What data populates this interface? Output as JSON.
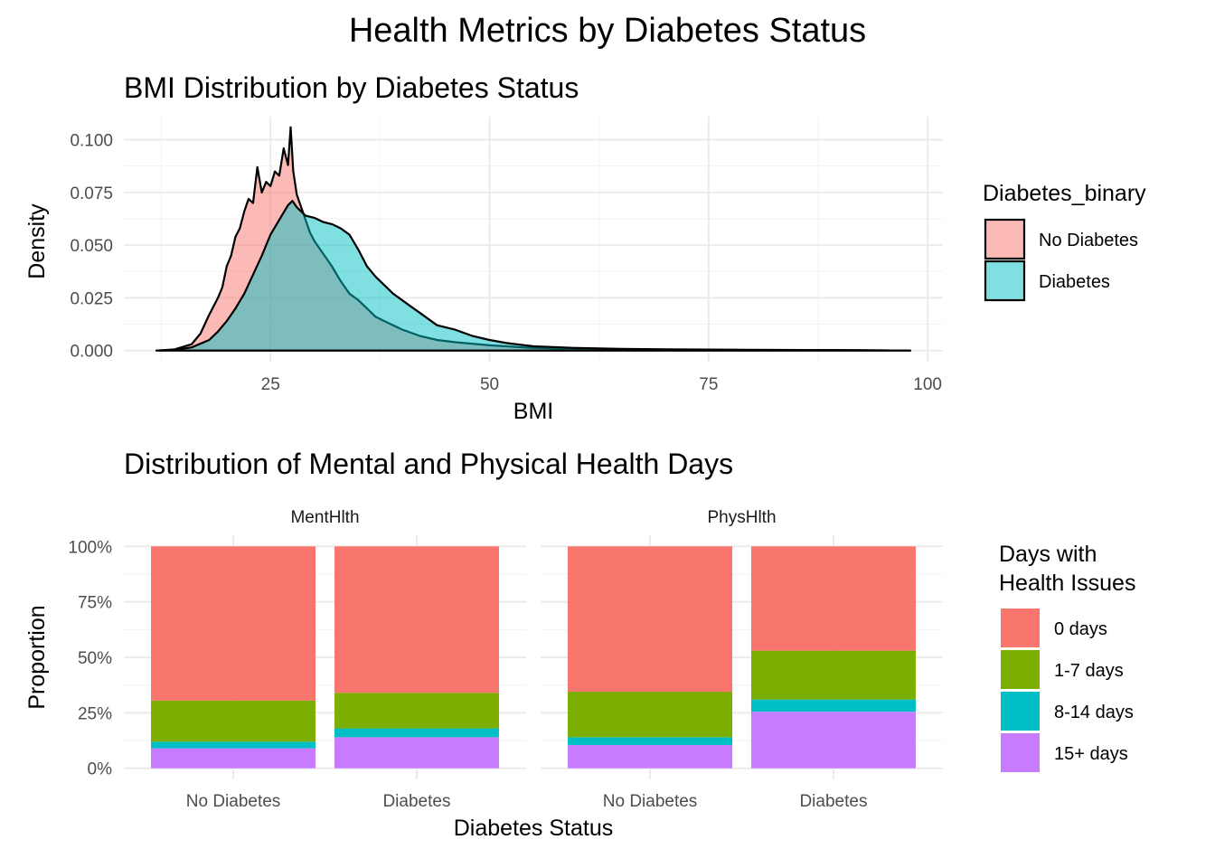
{
  "figure": {
    "title": "Health Metrics by Diabetes Status"
  },
  "chart_data": [
    {
      "type": "area",
      "title": "BMI Distribution by Diabetes Status",
      "xlabel": "BMI",
      "ylabel": "Density",
      "xlim": [
        12,
        98
      ],
      "ylim": [
        0,
        0.105
      ],
      "x_ticks": [
        "25",
        "50",
        "75",
        "100"
      ],
      "x_tick_values": [
        25,
        50,
        75,
        100
      ],
      "y_ticks": [
        "0.000",
        "0.025",
        "0.050",
        "0.075",
        "0.100"
      ],
      "y_tick_values": [
        0,
        0.025,
        0.05,
        0.075,
        0.1
      ],
      "grid": true,
      "legend": {
        "title": "Diabetes_binary",
        "position": "right"
      },
      "series": [
        {
          "name": "No Diabetes",
          "color": "#F8766D",
          "x": [
            12,
            14,
            16,
            17,
            18,
            19,
            19.5,
            20,
            20.5,
            21,
            21.5,
            22,
            22.5,
            23,
            23.5,
            24,
            24.5,
            25,
            25.5,
            26,
            26.5,
            27,
            27.3,
            27.6,
            28,
            28.5,
            29,
            29.5,
            30,
            31,
            32,
            33,
            34,
            35,
            36,
            37,
            38,
            40,
            42,
            44,
            46,
            50,
            55,
            60,
            70,
            80,
            90,
            98
          ],
          "values": [
            0.0,
            0.0005,
            0.003,
            0.008,
            0.017,
            0.025,
            0.03,
            0.04,
            0.045,
            0.054,
            0.058,
            0.066,
            0.072,
            0.07,
            0.087,
            0.075,
            0.08,
            0.078,
            0.085,
            0.083,
            0.096,
            0.088,
            0.106,
            0.085,
            0.074,
            0.068,
            0.062,
            0.056,
            0.052,
            0.046,
            0.04,
            0.033,
            0.027,
            0.024,
            0.02,
            0.016,
            0.014,
            0.01,
            0.007,
            0.005,
            0.004,
            0.0025,
            0.0012,
            0.0008,
            0.0004,
            0.0003,
            0.0002,
            0.0
          ]
        },
        {
          "name": "Diabetes",
          "color": "#00BFC4",
          "x": [
            12,
            14,
            16,
            18,
            19,
            20,
            21,
            22,
            23,
            24,
            25,
            26,
            27,
            27.5,
            28,
            29,
            30,
            31,
            32,
            33,
            34,
            35,
            36,
            37,
            38,
            39,
            40,
            41,
            42,
            43,
            44,
            46,
            48,
            50,
            52,
            55,
            60,
            65,
            70,
            80,
            90,
            98
          ],
          "values": [
            0.0,
            0.0003,
            0.0015,
            0.005,
            0.009,
            0.014,
            0.02,
            0.027,
            0.036,
            0.045,
            0.055,
            0.062,
            0.069,
            0.071,
            0.068,
            0.064,
            0.063,
            0.061,
            0.06,
            0.058,
            0.055,
            0.048,
            0.04,
            0.035,
            0.031,
            0.027,
            0.024,
            0.021,
            0.018,
            0.015,
            0.012,
            0.01,
            0.007,
            0.005,
            0.0035,
            0.002,
            0.0012,
            0.0008,
            0.0006,
            0.0003,
            0.0002,
            0.0
          ]
        }
      ]
    },
    {
      "type": "bar",
      "stacked": true,
      "title": "Distribution of Mental and Physical Health Days",
      "xlabel": "Diabetes Status",
      "ylabel": "Proportion",
      "ylim": [
        0,
        1
      ],
      "y_ticks": [
        "0%",
        "25%",
        "50%",
        "75%",
        "100%"
      ],
      "y_tick_values": [
        0,
        0.25,
        0.5,
        0.75,
        1
      ],
      "grid": true,
      "legend": {
        "title_lines": [
          "Days with",
          "Health Issues"
        ],
        "position": "right"
      },
      "categories": [
        "No Diabetes",
        "Diabetes"
      ],
      "stack_order": [
        "0 days",
        "1-7 days",
        "8-14 days",
        "15+ days"
      ],
      "colors": {
        "0 days": "#F8766D",
        "1-7 days": "#7CAE00",
        "8-14 days": "#00BFC4",
        "15+ days": "#C77CFF"
      },
      "panels": [
        {
          "label": "MentHlth",
          "bars": [
            {
              "category": "No Diabetes",
              "segments": {
                "15+ days": 0.09,
                "8-14 days": 0.03,
                "1-7 days": 0.185,
                "0 days": 0.695
              }
            },
            {
              "category": "Diabetes",
              "segments": {
                "15+ days": 0.14,
                "8-14 days": 0.04,
                "1-7 days": 0.16,
                "0 days": 0.66
              }
            }
          ]
        },
        {
          "label": "PhysHlth",
          "bars": [
            {
              "category": "No Diabetes",
              "segments": {
                "15+ days": 0.105,
                "8-14 days": 0.035,
                "1-7 days": 0.205,
                "0 days": 0.655
              }
            },
            {
              "category": "Diabetes",
              "segments": {
                "15+ days": 0.255,
                "8-14 days": 0.055,
                "1-7 days": 0.22,
                "0 days": 0.47
              }
            }
          ]
        }
      ]
    }
  ]
}
